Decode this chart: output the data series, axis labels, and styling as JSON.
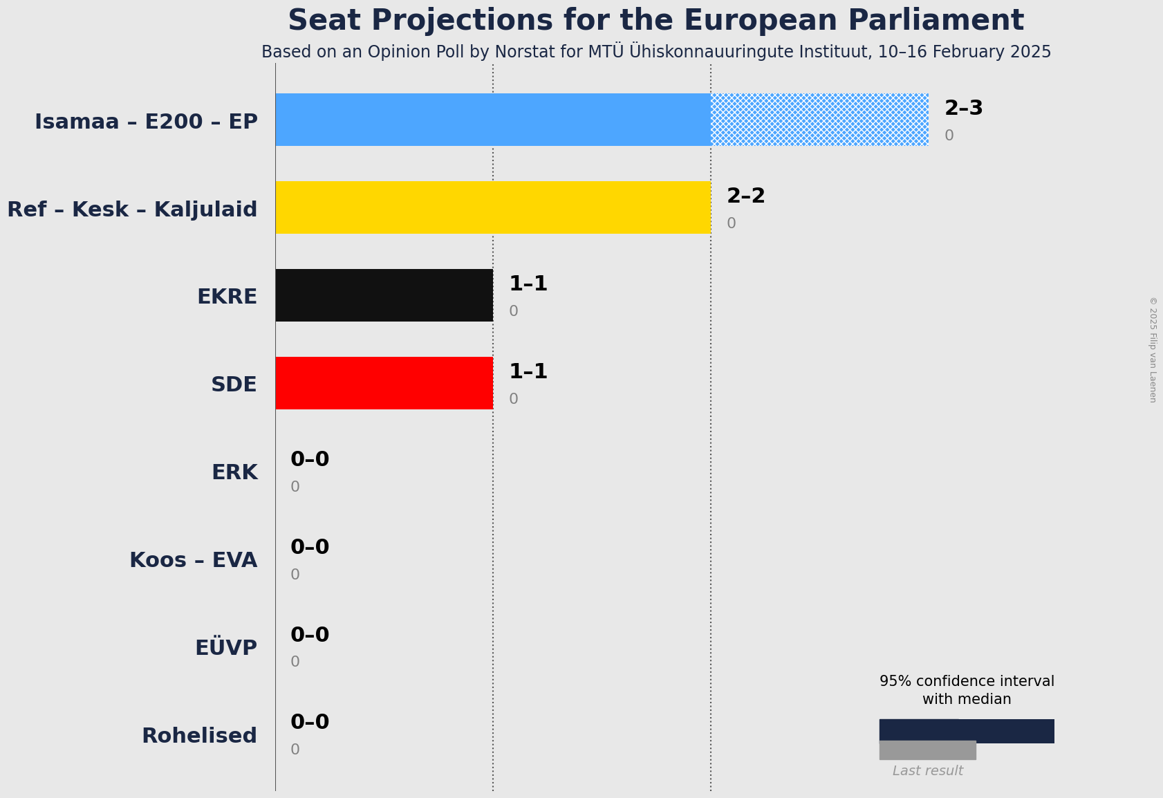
{
  "title": "Seat Projections for the European Parliament",
  "subtitle": "Based on an Opinion Poll by Norstat for MTÜ Ühiskonnauuringute Instituut, 10–16 February 2025",
  "background_color": "#e8e8e8",
  "parties": [
    {
      "name": "Isamaa – E200 – EP",
      "low": 2,
      "high": 3,
      "median": 2,
      "last": 0,
      "color": "#4da6ff",
      "has_hatched": true
    },
    {
      "name": "Ref – Kesk – Kaljulaid",
      "low": 2,
      "high": 2,
      "median": 2,
      "last": 0,
      "color": "#FFD700",
      "has_hatched": false
    },
    {
      "name": "EKRE",
      "low": 1,
      "high": 1,
      "median": 1,
      "last": 0,
      "color": "#111111",
      "has_hatched": false
    },
    {
      "name": "SDE",
      "low": 1,
      "high": 1,
      "median": 1,
      "last": 0,
      "color": "#FF0000",
      "has_hatched": false
    },
    {
      "name": "ERK",
      "low": 0,
      "high": 0,
      "median": 0,
      "last": 0,
      "color": "#888888",
      "has_hatched": false
    },
    {
      "name": "Koos – EVA",
      "low": 0,
      "high": 0,
      "median": 0,
      "last": 0,
      "color": "#888888",
      "has_hatched": false
    },
    {
      "name": "EÜVP",
      "low": 0,
      "high": 0,
      "median": 0,
      "last": 0,
      "color": "#888888",
      "has_hatched": false
    },
    {
      "name": "Rohelised",
      "low": 0,
      "high": 0,
      "median": 0,
      "last": 0,
      "color": "#888888",
      "has_hatched": false
    }
  ],
  "xlim": [
    0,
    3.5
  ],
  "bar_height": 0.6,
  "dashed_line_x": [
    1,
    2
  ],
  "dark_navy": "#1a2744",
  "label_fontsize": 22,
  "ytick_fontsize": 22,
  "title_fontsize": 30,
  "subtitle_fontsize": 17,
  "copyright_text": "© 2025 Filip van Laenen"
}
